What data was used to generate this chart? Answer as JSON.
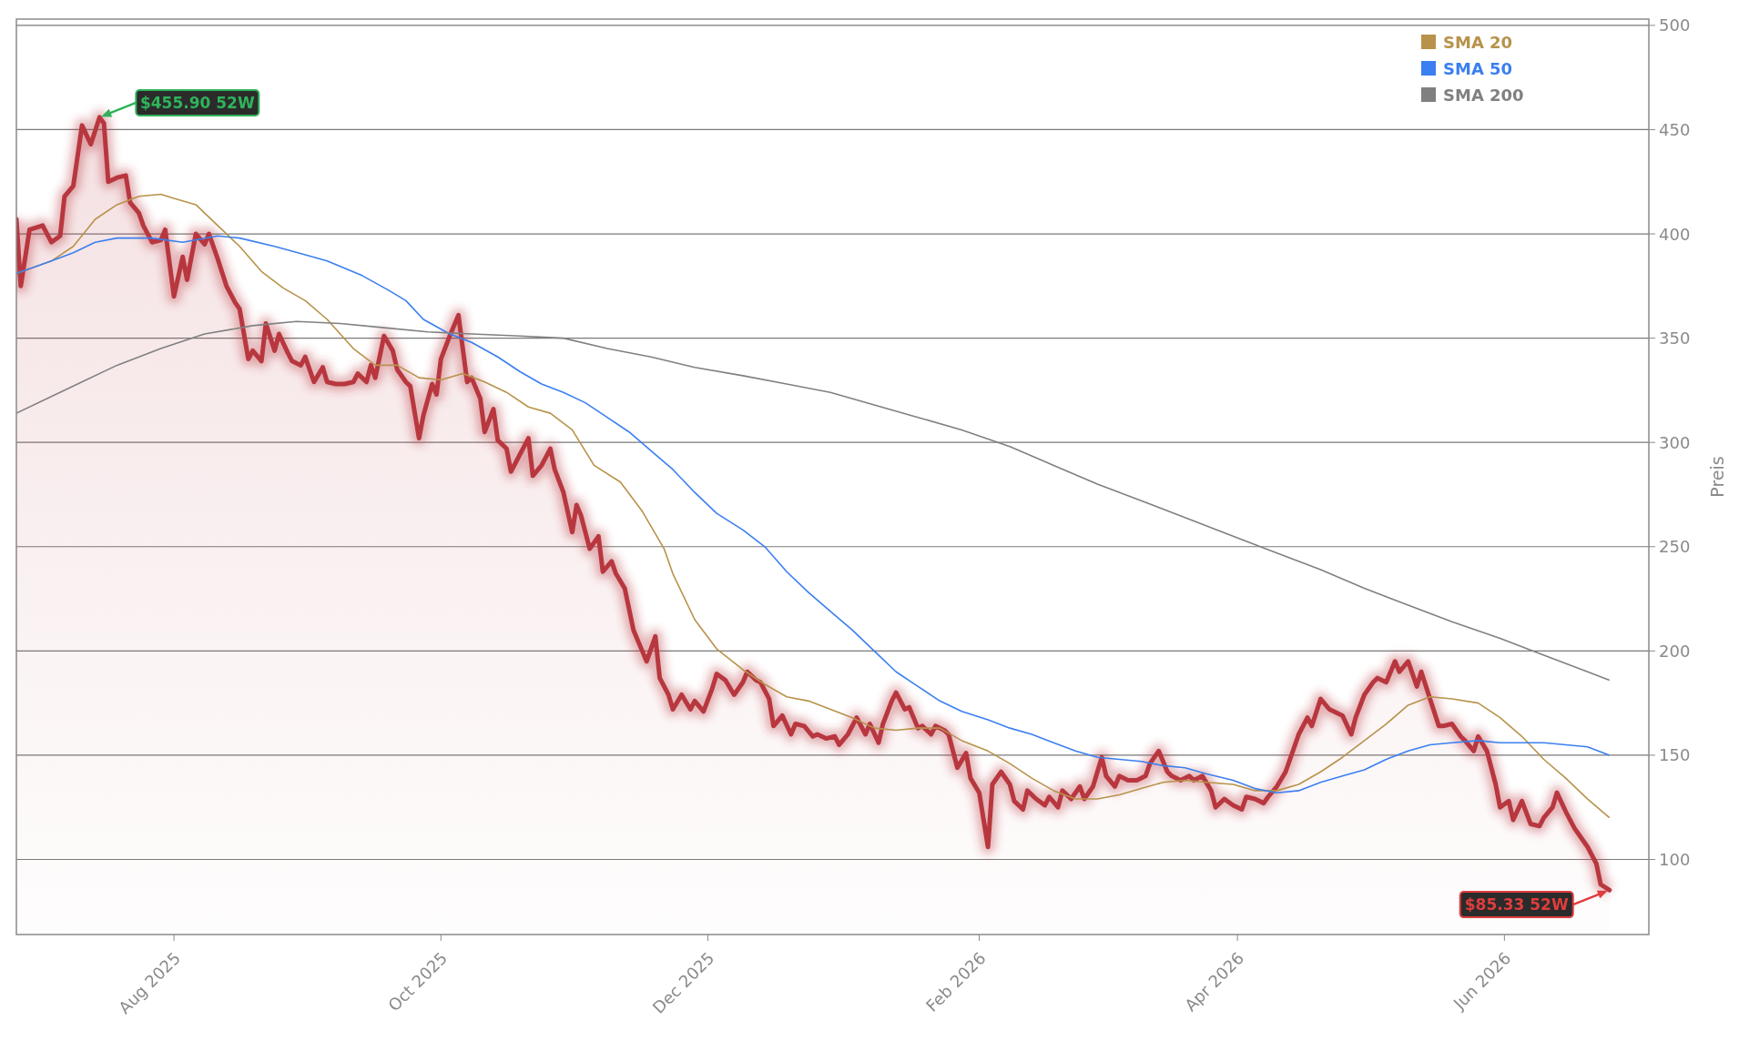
{
  "chart_data": {
    "type": "line",
    "ylabel": "Preis",
    "grid": "y",
    "legend": "top right",
    "xlim": [
      "2025-06-26",
      "2026-07-04"
    ],
    "ylim": [
      64,
      503
    ],
    "xticks": [
      {
        "value": "2025-08-01",
        "label": "Aug 2025"
      },
      {
        "value": "2025-10-01",
        "label": "Oct 2025"
      },
      {
        "value": "2025-12-01",
        "label": "Dec 2025"
      },
      {
        "value": "2026-02-01",
        "label": "Feb 2026"
      },
      {
        "value": "2026-04-01",
        "label": "Apr 2026"
      },
      {
        "value": "2026-06-01",
        "label": "Jun 2026"
      }
    ],
    "yticks": [
      100,
      150,
      200,
      250,
      300,
      350,
      400,
      450,
      500
    ],
    "annotations": [
      {
        "text": "$455.90 52W",
        "x": "2025-07-15",
        "y": 455.9
      },
      {
        "text": "$85.33 52W",
        "x": "2026-06-25",
        "y": 85.33
      }
    ],
    "series": [
      {
        "type": "area",
        "color": "#b8373f",
        "x": [
          "2025-06-26",
          "2025-06-27",
          "2025-06-29",
          "2025-07-02",
          "2025-07-04",
          "2025-07-06",
          "2025-07-07",
          "2025-07-09",
          "2025-07-11",
          "2025-07-13",
          "2025-07-15",
          "2025-07-16",
          "2025-07-17",
          "2025-07-19",
          "2025-07-21",
          "2025-07-22",
          "2025-07-24",
          "2025-07-25",
          "2025-07-27",
          "2025-07-29",
          "2025-07-30",
          "2025-08-01",
          "2025-08-03",
          "2025-08-04",
          "2025-08-06",
          "2025-08-08",
          "2025-08-09",
          "2025-08-11",
          "2025-08-13",
          "2025-08-15",
          "2025-08-16",
          "2025-08-18",
          "2025-08-19",
          "2025-08-21",
          "2025-08-22",
          "2025-08-24",
          "2025-08-25",
          "2025-08-27",
          "2025-08-28",
          "2025-08-30",
          "2025-08-31",
          "2025-09-02",
          "2025-09-04",
          "2025-09-05",
          "2025-09-07",
          "2025-09-09",
          "2025-09-11",
          "2025-09-12",
          "2025-09-14",
          "2025-09-15",
          "2025-09-16",
          "2025-09-18",
          "2025-09-20",
          "2025-09-21",
          "2025-09-23",
          "2025-09-24",
          "2025-09-26",
          "2025-09-27",
          "2025-09-29",
          "2025-09-30",
          "2025-10-01",
          "2025-10-03",
          "2025-10-04",
          "2025-10-05",
          "2025-10-07",
          "2025-10-08",
          "2025-10-10",
          "2025-10-11",
          "2025-10-13",
          "2025-10-14",
          "2025-10-16",
          "2025-10-17",
          "2025-10-19",
          "2025-10-21",
          "2025-10-22",
          "2025-10-24",
          "2025-10-26",
          "2025-10-27",
          "2025-10-29",
          "2025-10-31",
          "2025-11-01",
          "2025-11-02",
          "2025-11-04",
          "2025-11-06",
          "2025-11-07",
          "2025-11-09",
          "2025-11-10",
          "2025-11-12",
          "2025-11-14",
          "2025-11-16",
          "2025-11-17",
          "2025-11-19",
          "2025-11-20",
          "2025-11-22",
          "2025-11-23",
          "2025-11-25",
          "2025-11-27",
          "2025-11-28",
          "2025-11-30",
          "2025-12-02",
          "2025-12-03",
          "2025-12-05",
          "2025-12-07",
          "2025-12-09",
          "2025-12-10",
          "2025-12-12",
          "2025-12-13",
          "2025-12-15",
          "2025-12-16",
          "2025-12-18",
          "2025-12-20",
          "2025-12-21",
          "2025-12-23",
          "2025-12-25",
          "2025-12-26",
          "2025-12-28",
          "2025-12-30",
          "2025-12-31",
          "2026-01-02",
          "2026-01-04",
          "2026-01-06",
          "2026-01-07",
          "2026-01-09",
          "2026-01-10",
          "2026-01-12",
          "2026-01-13",
          "2026-01-15",
          "2026-01-16",
          "2026-01-18",
          "2026-01-19",
          "2026-01-21",
          "2026-01-22",
          "2026-01-24",
          "2026-01-25",
          "2026-01-27",
          "2026-01-29",
          "2026-01-30",
          "2026-02-01",
          "2026-02-03",
          "2026-02-04",
          "2026-02-06",
          "2026-02-08",
          "2026-02-09",
          "2026-02-11",
          "2026-02-12",
          "2026-02-14",
          "2026-02-16",
          "2026-02-17",
          "2026-02-19",
          "2026-02-20",
          "2026-02-22",
          "2026-02-24",
          "2026-02-25",
          "2026-02-27",
          "2026-03-01",
          "2026-03-02",
          "2026-03-04",
          "2026-03-05",
          "2026-03-07",
          "2026-03-09",
          "2026-03-11",
          "2026-03-12",
          "2026-03-14",
          "2026-03-16",
          "2026-03-17",
          "2026-03-19",
          "2026-03-21",
          "2026-03-22",
          "2026-03-24",
          "2026-03-26",
          "2026-03-27",
          "2026-03-29",
          "2026-03-31",
          "2026-04-02",
          "2026-04-03",
          "2026-04-05",
          "2026-04-07",
          "2026-04-08",
          "2026-04-10",
          "2026-04-12",
          "2026-04-13",
          "2026-04-15",
          "2026-04-17",
          "2026-04-18",
          "2026-04-20",
          "2026-04-22",
          "2026-04-23",
          "2026-04-25",
          "2026-04-27",
          "2026-04-28",
          "2026-04-30",
          "2026-05-02",
          "2026-05-03",
          "2026-05-05",
          "2026-05-07",
          "2026-05-08",
          "2026-05-10",
          "2026-05-12",
          "2026-05-13",
          "2026-05-15",
          "2026-05-17",
          "2026-05-18",
          "2026-05-20",
          "2026-05-22",
          "2026-05-23",
          "2026-05-25",
          "2026-05-26",
          "2026-05-28",
          "2026-05-30",
          "2026-05-31",
          "2026-06-02",
          "2026-06-03",
          "2026-06-05",
          "2026-06-07",
          "2026-06-09",
          "2026-06-10",
          "2026-06-12",
          "2026-06-13",
          "2026-06-15",
          "2026-06-17",
          "2026-06-18",
          "2026-06-20",
          "2026-06-22",
          "2026-06-23",
          "2026-06-25"
        ],
        "values": [
          407,
          375,
          402,
          404,
          396,
          399,
          418,
          423,
          452,
          443,
          455.9,
          453,
          425,
          427,
          428,
          415,
          410,
          404,
          396,
          397,
          402,
          370,
          389,
          378,
          400,
          395,
          400,
          388,
          375,
          367,
          364,
          340,
          344,
          339,
          357,
          344,
          352,
          343,
          339,
          337,
          341,
          329,
          336,
          329,
          328,
          328,
          329,
          333,
          329,
          337,
          331,
          351,
          344,
          335,
          329,
          327,
          302,
          313,
          328,
          323,
          340,
          351,
          356,
          361,
          329,
          331,
          321,
          305,
          316,
          301,
          297,
          286,
          294,
          302,
          284,
          289,
          297,
          287,
          276,
          257,
          270,
          265,
          249,
          255,
          238,
          243,
          237,
          230,
          210,
          200,
          195,
          207,
          187,
          179,
          172,
          179,
          172,
          176,
          171,
          182,
          189,
          186,
          179,
          185,
          190,
          186,
          185,
          177,
          164,
          169,
          160,
          165,
          164,
          159,
          160,
          158,
          159,
          155,
          160,
          168,
          160,
          165,
          156,
          165,
          176,
          180,
          172,
          173,
          163,
          164,
          160,
          164,
          162,
          160,
          144,
          151,
          139,
          132,
          106,
          136,
          142,
          136,
          128,
          124,
          133,
          129,
          126,
          130,
          125,
          133,
          129,
          135,
          129,
          135,
          149,
          140,
          135,
          140,
          138,
          138,
          140,
          146,
          152,
          142,
          140,
          138,
          140,
          138,
          140,
          133,
          125,
          129,
          126,
          124,
          130,
          129,
          127,
          130,
          135,
          142,
          148,
          160,
          168,
          164,
          177,
          172,
          171,
          169,
          160,
          168,
          179,
          185,
          187,
          185,
          195,
          190,
          195,
          183,
          190,
          177,
          164,
          164,
          165,
          159,
          157,
          152,
          159,
          152,
          136,
          125,
          128,
          119,
          128,
          117,
          116,
          120,
          125,
          132,
          123,
          115,
          112,
          106,
          98,
          88,
          85.33
        ]
      },
      {
        "name": "SMA 20",
        "color": "#b8924a",
        "x": [
          "2025-06-26",
          "2025-07-04",
          "2025-07-09",
          "2025-07-14",
          "2025-07-19",
          "2025-07-24",
          "2025-07-29",
          "2025-08-01",
          "2025-08-06",
          "2025-08-11",
          "2025-08-16",
          "2025-08-21",
          "2025-08-26",
          "2025-08-31",
          "2025-09-05",
          "2025-09-11",
          "2025-09-16",
          "2025-09-21",
          "2025-09-26",
          "2025-10-01",
          "2025-10-06",
          "2025-10-11",
          "2025-10-16",
          "2025-10-21",
          "2025-10-26",
          "2025-10-31",
          "2025-11-05",
          "2025-11-11",
          "2025-11-16",
          "2025-11-21",
          "2025-11-23",
          "2025-11-28",
          "2025-12-03",
          "2025-12-09",
          "2025-12-14",
          "2025-12-19",
          "2025-12-24",
          "2025-12-29",
          "2026-01-03",
          "2026-01-08",
          "2026-01-13",
          "2026-01-18",
          "2026-01-23",
          "2026-01-28",
          "2026-02-03",
          "2026-02-08",
          "2026-02-13",
          "2026-02-18",
          "2026-02-23",
          "2026-02-28",
          "2026-03-05",
          "2026-03-10",
          "2026-03-15",
          "2026-03-20",
          "2026-03-25",
          "2026-03-31",
          "2026-04-05",
          "2026-04-10",
          "2026-04-15",
          "2026-04-20",
          "2026-04-25",
          "2026-04-30",
          "2026-05-05",
          "2026-05-10",
          "2026-05-15",
          "2026-05-20",
          "2026-05-26",
          "2026-05-31",
          "2026-06-05",
          "2026-06-10",
          "2026-06-15",
          "2026-06-20",
          "2026-06-25"
        ],
        "values": [
          381,
          387,
          394,
          407,
          414,
          418,
          419,
          417,
          414,
          404,
          394,
          382,
          374,
          368,
          359,
          345,
          337,
          337,
          331,
          330,
          333,
          329,
          324,
          317,
          314,
          306,
          289,
          281,
          267,
          249,
          237,
          215,
          201,
          191,
          184,
          178,
          176,
          172,
          168,
          163,
          162,
          163,
          163,
          157,
          152,
          146,
          139,
          133,
          129,
          129,
          131,
          134,
          137,
          138,
          137,
          136,
          133,
          133,
          136,
          142,
          149,
          157,
          165,
          174,
          178,
          177,
          175,
          168,
          159,
          148,
          139,
          129,
          120
        ]
      },
      {
        "name": "SMA 50",
        "color": "#3b7ff0",
        "x": [
          "2025-06-26",
          "2025-07-04",
          "2025-07-09",
          "2025-07-14",
          "2025-07-19",
          "2025-07-27",
          "2025-08-03",
          "2025-08-11",
          "2025-08-16",
          "2025-08-24",
          "2025-08-31",
          "2025-09-05",
          "2025-09-13",
          "2025-09-19",
          "2025-09-23",
          "2025-09-27",
          "2025-10-03",
          "2025-10-08",
          "2025-10-14",
          "2025-10-19",
          "2025-10-24",
          "2025-10-29",
          "2025-11-03",
          "2025-11-08",
          "2025-11-13",
          "2025-11-18",
          "2025-11-23",
          "2025-11-28",
          "2025-12-03",
          "2025-12-09",
          "2025-12-14",
          "2025-12-19",
          "2025-12-24",
          "2025-12-29",
          "2026-01-03",
          "2026-01-08",
          "2026-01-13",
          "2026-01-18",
          "2026-01-23",
          "2026-01-28",
          "2026-02-03",
          "2026-02-08",
          "2026-02-13",
          "2026-02-18",
          "2026-02-23",
          "2026-02-28",
          "2026-03-05",
          "2026-03-10",
          "2026-03-15",
          "2026-03-20",
          "2026-03-25",
          "2026-03-31",
          "2026-04-05",
          "2026-04-10",
          "2026-04-15",
          "2026-04-20",
          "2026-04-25",
          "2026-04-30",
          "2026-05-05",
          "2026-05-10",
          "2026-05-15",
          "2026-05-20",
          "2026-05-26",
          "2026-05-31",
          "2026-06-05",
          "2026-06-10",
          "2026-06-15",
          "2026-06-20",
          "2026-06-25"
        ],
        "values": [
          381,
          387,
          391,
          396,
          398,
          398,
          396,
          399,
          398,
          394,
          390,
          387,
          380,
          373,
          368,
          359,
          352,
          348,
          341,
          334,
          328,
          324,
          319,
          312,
          305,
          296,
          287,
          276,
          266,
          258,
          250,
          238,
          228,
          219,
          210,
          200,
          190,
          183,
          176,
          171,
          167,
          163,
          160,
          156,
          152,
          149,
          148,
          147,
          145,
          144,
          141,
          138,
          134,
          132,
          133,
          137,
          140,
          143,
          148,
          152,
          155,
          156,
          157,
          156,
          156,
          156,
          155,
          154,
          150
        ]
      },
      {
        "name": "SMA 200",
        "color": "#808080",
        "x": [
          "2025-06-26",
          "2025-07-09",
          "2025-07-19",
          "2025-07-29",
          "2025-08-08",
          "2025-08-19",
          "2025-08-29",
          "2025-09-08",
          "2025-09-18",
          "2025-09-28",
          "2025-10-08",
          "2025-10-19",
          "2025-10-29",
          "2025-11-08",
          "2025-11-18",
          "2025-11-28",
          "2025-12-09",
          "2025-12-19",
          "2025-12-29",
          "2026-01-08",
          "2026-01-18",
          "2026-01-28",
          "2026-02-08",
          "2026-02-18",
          "2026-02-28",
          "2026-03-10",
          "2026-03-20",
          "2026-03-31",
          "2026-04-10",
          "2026-04-20",
          "2026-04-30",
          "2026-05-10",
          "2026-05-20",
          "2026-05-31",
          "2026-06-10",
          "2026-06-20",
          "2026-06-25"
        ],
        "values": [
          314,
          327,
          337,
          345,
          352,
          356,
          358,
          357,
          355,
          353,
          352,
          351,
          350,
          345,
          341,
          336,
          332,
          328,
          324,
          318,
          312,
          306,
          298,
          289,
          280,
          272,
          264,
          255,
          247,
          239,
          230,
          222,
          214,
          206,
          198,
          190,
          186
        ]
      }
    ]
  }
}
